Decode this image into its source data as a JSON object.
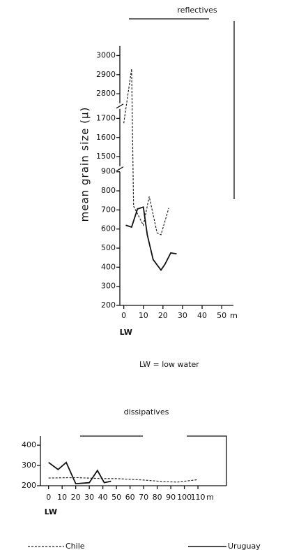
{
  "chart_data": [
    {
      "type": "line",
      "title": "reflectives",
      "ylabel": "mean grain size (μ)",
      "x_unit": "m",
      "x_origin_label": "LW",
      "note": "LW = low water",
      "xlim": [
        -2,
        56
      ],
      "xticks": [
        0,
        10,
        20,
        30,
        40,
        50
      ],
      "ylim": [
        200,
        3050
      ],
      "ylim_segments": [
        [
          200,
          900
        ],
        [
          1450,
          1750
        ],
        [
          2750,
          3050
        ]
      ],
      "yticks": [
        200,
        300,
        400,
        500,
        600,
        700,
        800,
        900,
        1500,
        1600,
        1700,
        2800,
        2900,
        3000
      ],
      "series": [
        {
          "style": "dashed",
          "color": "#222222",
          "x": [
            0,
            4,
            5,
            10,
            13,
            17,
            19,
            23
          ],
          "values": [
            1675,
            2930,
            720,
            620,
            770,
            580,
            570,
            710
          ]
        },
        {
          "style": "solid",
          "color": "#111111",
          "x": [
            1,
            4,
            7,
            10,
            12,
            15,
            19,
            21,
            24,
            27
          ],
          "values": [
            620,
            610,
            705,
            715,
            570,
            440,
            385,
            415,
            475,
            470
          ]
        }
      ]
    },
    {
      "type": "line",
      "title": "dissipatives",
      "x_unit": "m",
      "x_origin_label": "LW",
      "xlim": [
        -6,
        131
      ],
      "xticks": [
        0,
        10,
        20,
        30,
        40,
        50,
        60,
        70,
        80,
        90,
        100,
        110
      ],
      "ylim": [
        200,
        445
      ],
      "yticks": [
        200,
        300,
        400
      ],
      "series": [
        {
          "name": "Chile",
          "style": "dashed",
          "color": "#222222",
          "x": [
            0,
            20,
            40,
            50,
            70,
            85,
            95,
            100,
            110
          ],
          "values": [
            238,
            240,
            235,
            235,
            228,
            220,
            218,
            222,
            230
          ]
        },
        {
          "name": "Uruguay",
          "style": "solid",
          "color": "#111111",
          "x": [
            0,
            7,
            13,
            20,
            30,
            36,
            41,
            46
          ],
          "values": [
            315,
            280,
            315,
            210,
            215,
            275,
            215,
            222
          ]
        }
      ]
    }
  ]
}
